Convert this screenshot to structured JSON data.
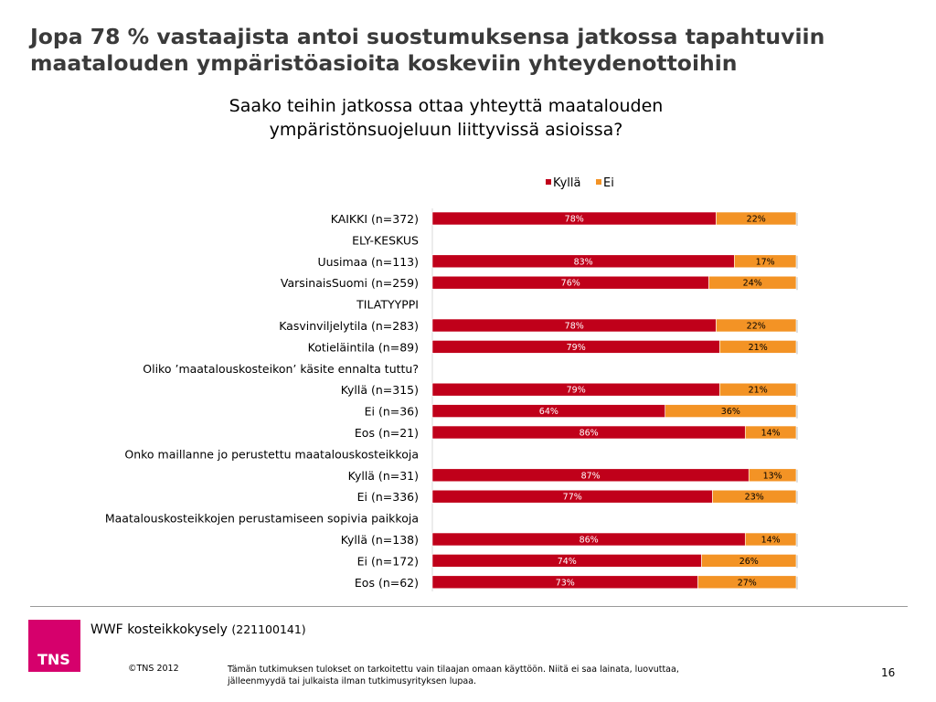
{
  "headline": "Jopa 78 % vastaajista antoi suostumuksensa jatkossa tapahtuviin maatalouden ympäristöasioita koskeviin yhteydenottoihin",
  "subtitle": "Saako teihin jatkossa ottaa yhteyttä maatalouden ympäristönsuojeluun liittyvissä asioissa?",
  "chart_data": {
    "type": "bar",
    "orientation": "horizontal",
    "stacked": true,
    "percent": true,
    "legend_position": "top-right",
    "categories": [
      "KAIKKI (n=372)",
      "ELY-KESKUS",
      "Uusimaa (n=113)",
      "VarsinaisSuomi (n=259)",
      "TILATYYPPI",
      "Kasvinviljelytila (n=283)",
      "Kotieläintila (n=89)",
      "Oliko ’maatalouskosteikon’ käsite ennalta tuttu?",
      "Kyllä (n=315)",
      "Ei (n=36)",
      "Eos (n=21)",
      "Onko maillanne jo perustettu maatalouskosteikkoja",
      "Kyllä (n=31)",
      "Ei (n=336)",
      "Maatalouskosteikkojen perustamiseen sopivia paikkoja",
      "Kyllä (n=138)",
      "Ei (n=172)",
      "Eos (n=62)"
    ],
    "series": [
      {
        "name": "Kyllä",
        "color": "#c0001a",
        "label_color": "#ffffff",
        "values": [
          78,
          null,
          83,
          76,
          null,
          78,
          79,
          null,
          79,
          64,
          86,
          null,
          87,
          77,
          null,
          86,
          74,
          73
        ]
      },
      {
        "name": "Ei",
        "color": "#f39325",
        "label_color": "#000000",
        "values": [
          22,
          null,
          17,
          24,
          null,
          22,
          21,
          null,
          21,
          36,
          14,
          null,
          13,
          23,
          null,
          14,
          26,
          27
        ]
      }
    ],
    "xlim": [
      0,
      100
    ]
  },
  "footer": {
    "logo_text": "TNS",
    "project": "WWF kosteikkokysely",
    "project_code": "(221100141)",
    "copyright": "©TNS 2012",
    "disclaimer": "Tämän tutkimuksen tulokset on tarkoitettu vain tilaajan omaan käyttöön. Niitä ei saa  lainata, luovuttaa, jälleenmyydä tai julkaista ilman tutkimusyrityksen lupaa.",
    "page_number": "16"
  }
}
